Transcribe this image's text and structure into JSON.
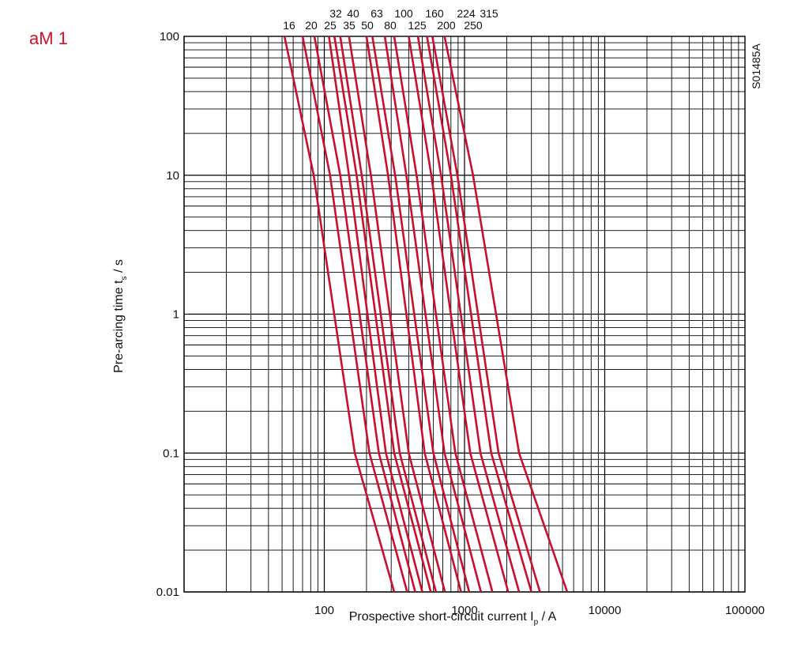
{
  "panel_label": "aM 1",
  "figure_code": "S01485A",
  "colors": {
    "curve": "#c8102e",
    "label": "#d0102a",
    "grid": "#000000"
  },
  "chart_data": {
    "type": "line",
    "title": "",
    "xlabel_main": "Prospective short-circuit current I",
    "xlabel_sub": "p",
    "xlabel_tail": " / A",
    "ylabel_main": "Pre-arcing time t",
    "ylabel_sub": "s",
    "ylabel_tail": " / s",
    "x_scale": "log",
    "y_scale": "log",
    "xlim": [
      10,
      100000
    ],
    "ylim": [
      0.01,
      100
    ],
    "grid": true,
    "legend": "curve labels at top",
    "x_tick_labels": [
      "100",
      "1000",
      "10000",
      "100000"
    ],
    "x_tick_values": [
      100,
      1000,
      10000,
      100000
    ],
    "y_tick_labels": [
      "100",
      "10",
      "1",
      "0.1",
      "0.01"
    ],
    "y_tick_values": [
      100,
      10,
      1,
      0.1,
      0.01
    ],
    "series": [
      {
        "name": "16",
        "points": [
          [
            52,
            100
          ],
          [
            84,
            10
          ],
          [
            165,
            0.1
          ],
          [
            315,
            0.01
          ]
        ]
      },
      {
        "name": "20",
        "points": [
          [
            70,
            100
          ],
          [
            110,
            10
          ],
          [
            210,
            0.1
          ],
          [
            390,
            0.01
          ]
        ]
      },
      {
        "name": "25",
        "points": [
          [
            85,
            100
          ],
          [
            130,
            10
          ],
          [
            245,
            0.1
          ],
          [
            445,
            0.01
          ]
        ]
      },
      {
        "name": "32",
        "points": [
          [
            108,
            100
          ],
          [
            150,
            10
          ],
          [
            275,
            0.1
          ],
          [
            500,
            0.01
          ]
        ]
      },
      {
        "name": "35",
        "points": [
          [
            118,
            100
          ],
          [
            170,
            10
          ],
          [
            315,
            0.1
          ],
          [
            575,
            0.01
          ]
        ]
      },
      {
        "name": "40",
        "points": [
          [
            130,
            100
          ],
          [
            185,
            10
          ],
          [
            345,
            0.1
          ],
          [
            625,
            0.01
          ]
        ]
      },
      {
        "name": "50",
        "points": [
          [
            150,
            100
          ],
          [
            215,
            10
          ],
          [
            400,
            0.1
          ],
          [
            725,
            0.01
          ]
        ]
      },
      {
        "name": "63",
        "points": [
          [
            200,
            100
          ],
          [
            285,
            10
          ],
          [
            520,
            0.1
          ],
          [
            945,
            0.01
          ]
        ]
      },
      {
        "name": "80",
        "points": [
          [
            220,
            100
          ],
          [
            320,
            10
          ],
          [
            600,
            0.1
          ],
          [
            1080,
            0.01
          ]
        ]
      },
      {
        "name": "100",
        "points": [
          [
            270,
            100
          ],
          [
            385,
            10
          ],
          [
            720,
            0.1
          ],
          [
            1310,
            0.01
          ]
        ]
      },
      {
        "name": "125",
        "points": [
          [
            315,
            100
          ],
          [
            455,
            10
          ],
          [
            860,
            0.1
          ],
          [
            1580,
            0.01
          ]
        ]
      },
      {
        "name": "160",
        "points": [
          [
            400,
            100
          ],
          [
            580,
            10
          ],
          [
            1100,
            0.1
          ],
          [
            2050,
            0.01
          ]
        ]
      },
      {
        "name": "200",
        "points": [
          [
            465,
            100
          ],
          [
            680,
            10
          ],
          [
            1300,
            0.1
          ],
          [
            2450,
            0.01
          ]
        ]
      },
      {
        "name": "224",
        "points": [
          [
            540,
            100
          ],
          [
            800,
            10
          ],
          [
            1550,
            0.1
          ],
          [
            3000,
            0.01
          ]
        ]
      },
      {
        "name": "250",
        "points": [
          [
            590,
            100
          ],
          [
            890,
            10
          ],
          [
            1750,
            0.1
          ],
          [
            3450,
            0.01
          ]
        ]
      },
      {
        "name": "315",
        "points": [
          [
            720,
            100
          ],
          [
            1150,
            10
          ],
          [
            2450,
            0.1
          ],
          [
            5400,
            0.01
          ]
        ]
      }
    ]
  }
}
